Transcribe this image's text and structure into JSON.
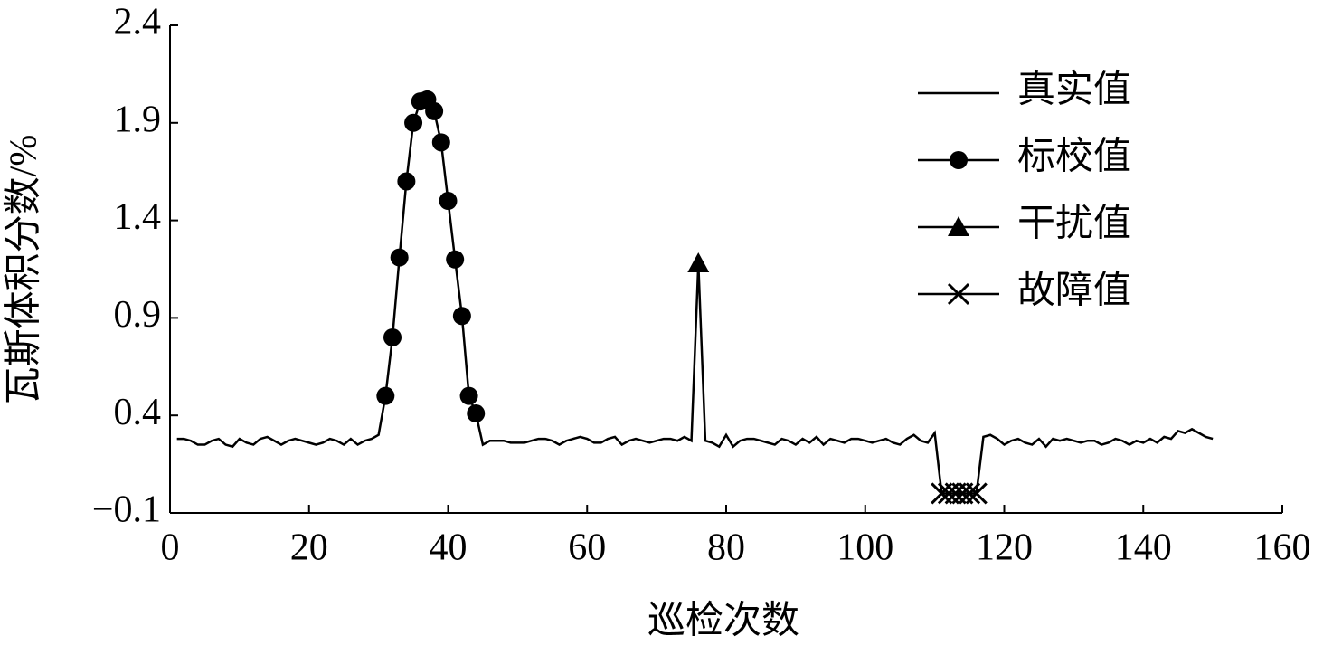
{
  "chart_data": {
    "type": "line",
    "y_label": "瓦斯体积分数/%",
    "x_label": "巡检次数",
    "xlim": [
      0,
      160
    ],
    "xticks": [
      0,
      20,
      40,
      60,
      80,
      100,
      120,
      140,
      160
    ],
    "ylim": [
      -0.1,
      2.4
    ],
    "yticks": [
      {
        "value": -0.1,
        "label": "−0.1"
      },
      0.4,
      0.9,
      1.4,
      1.9,
      2.4
    ],
    "legend": "upper right",
    "x": [
      1,
      2,
      3,
      4,
      5,
      6,
      7,
      8,
      9,
      10,
      11,
      12,
      13,
      14,
      15,
      16,
      17,
      18,
      19,
      20,
      21,
      22,
      23,
      24,
      25,
      26,
      27,
      28,
      29,
      30,
      31,
      32,
      33,
      34,
      35,
      36,
      37,
      38,
      39,
      40,
      41,
      42,
      43,
      44,
      45,
      46,
      47,
      48,
      49,
      50,
      51,
      52,
      53,
      54,
      55,
      56,
      57,
      58,
      59,
      60,
      61,
      62,
      63,
      64,
      65,
      66,
      67,
      68,
      69,
      70,
      71,
      72,
      73,
      74,
      75,
      76,
      77,
      78,
      79,
      80,
      81,
      82,
      83,
      84,
      85,
      86,
      87,
      88,
      89,
      90,
      91,
      92,
      93,
      94,
      95,
      96,
      97,
      98,
      99,
      100,
      101,
      102,
      103,
      104,
      105,
      106,
      107,
      108,
      109,
      110,
      111,
      112,
      113,
      114,
      115,
      116,
      117,
      118,
      119,
      120,
      121,
      122,
      123,
      124,
      125,
      126,
      127,
      128,
      129,
      130,
      131,
      132,
      133,
      134,
      135,
      136,
      137,
      138,
      139,
      140,
      141,
      142,
      143,
      144,
      145,
      146,
      147,
      148,
      149,
      150
    ],
    "series": [
      {
        "name": "真实值",
        "color": "#000000",
        "marker": "none",
        "values": [
          0.28,
          0.28,
          0.27,
          0.25,
          0.25,
          0.27,
          0.28,
          0.25,
          0.24,
          0.28,
          0.26,
          0.25,
          0.28,
          0.29,
          0.27,
          0.25,
          0.27,
          0.28,
          0.27,
          0.26,
          0.25,
          0.26,
          0.28,
          0.27,
          0.25,
          0.28,
          0.25,
          0.27,
          0.28,
          0.3,
          0.5,
          0.8,
          1.21,
          1.6,
          1.9,
          2.01,
          2.02,
          1.96,
          1.8,
          1.5,
          1.2,
          0.91,
          0.5,
          0.41,
          0.25,
          0.27,
          0.27,
          0.27,
          0.26,
          0.26,
          0.26,
          0.27,
          0.28,
          0.28,
          0.27,
          0.25,
          0.27,
          0.28,
          0.29,
          0.28,
          0.26,
          0.26,
          0.28,
          0.29,
          0.25,
          0.27,
          0.28,
          0.27,
          0.26,
          0.27,
          0.28,
          0.28,
          0.27,
          0.29,
          0.27,
          1.18,
          0.27,
          0.26,
          0.24,
          0.3,
          0.24,
          0.27,
          0.28,
          0.28,
          0.27,
          0.26,
          0.25,
          0.28,
          0.27,
          0.25,
          0.28,
          0.26,
          0.29,
          0.25,
          0.28,
          0.27,
          0.26,
          0.28,
          0.28,
          0.27,
          0.26,
          0.27,
          0.28,
          0.26,
          0.25,
          0.28,
          0.3,
          0.27,
          0.26,
          0.31,
          0,
          0,
          0,
          0,
          0,
          0,
          0.29,
          0.3,
          0.28,
          0.25,
          0.27,
          0.28,
          0.26,
          0.25,
          0.28,
          0.24,
          0.28,
          0.27,
          0.28,
          0.27,
          0.26,
          0.27,
          0.27,
          0.25,
          0.26,
          0.28,
          0.27,
          0.25,
          0.27,
          0.26,
          0.28,
          0.26,
          0.29,
          0.28,
          0.32,
          0.31,
          0.33,
          0.31,
          0.29,
          0.28
        ]
      },
      {
        "name": "标校值",
        "color": "#000000",
        "marker": "circle",
        "x": [
          31,
          32,
          33,
          34,
          35,
          36,
          37,
          38,
          39,
          40,
          41,
          42,
          43,
          44
        ],
        "values": [
          0.5,
          0.8,
          1.21,
          1.6,
          1.9,
          2.01,
          2.02,
          1.96,
          1.8,
          1.5,
          1.2,
          0.91,
          0.5,
          0.41
        ]
      },
      {
        "name": "干扰值",
        "color": "#000000",
        "marker": "triangle",
        "x": [
          76
        ],
        "values": [
          1.18
        ]
      },
      {
        "name": "故障值",
        "color": "#000000",
        "marker": "x",
        "x": [
          111,
          112,
          113,
          114,
          115,
          116
        ],
        "values": [
          0,
          0,
          0,
          0,
          0,
          0
        ]
      }
    ]
  }
}
